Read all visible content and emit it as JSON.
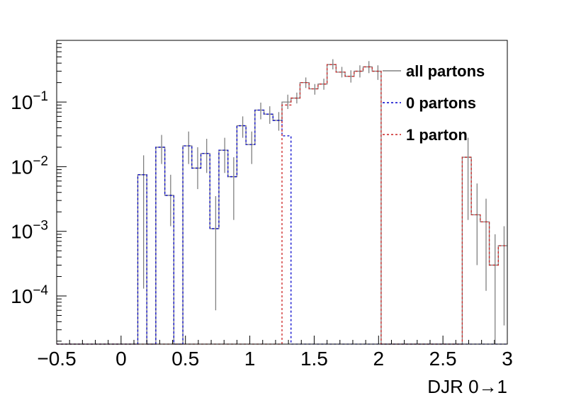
{
  "chart_data": {
    "type": "histogram-step",
    "xlabel": "DJR 0→1",
    "ylabel": "",
    "xlim": [
      -0.5,
      3.0
    ],
    "ylim": [
      1.8e-05,
      0.9
    ],
    "yscale": "log",
    "grid": false,
    "legend_placement": "top-right",
    "bin_width": 0.07,
    "x_ticks": [
      {
        "value": -0.5,
        "label": "−0.5"
      },
      {
        "value": 0,
        "label": "0"
      },
      {
        "value": 0.5,
        "label": "0.5"
      },
      {
        "value": 1,
        "label": "1"
      },
      {
        "value": 1.5,
        "label": "1.5"
      },
      {
        "value": 2,
        "label": "2"
      },
      {
        "value": 2.5,
        "label": "2.5"
      },
      {
        "value": 3,
        "label": "3"
      }
    ],
    "y_ticks": [
      {
        "value": 0.1,
        "base": "10",
        "exp": "−1"
      },
      {
        "value": 0.01,
        "base": "10",
        "exp": "−2"
      },
      {
        "value": 0.001,
        "base": "10",
        "exp": "−3"
      },
      {
        "value": 0.0001,
        "base": "10",
        "exp": "−4"
      }
    ],
    "series": [
      {
        "name": "all partons",
        "color": "#808080",
        "dash": "solid",
        "bins": [
          {
            "x0": 0.14,
            "x1": 0.21,
            "y": 0.0075,
            "err": [
              0.00013,
              0.015
            ]
          },
          {
            "x0": 0.28,
            "x1": 0.35,
            "y": 0.02,
            "err": [
              0.011,
              0.031
            ]
          },
          {
            "x0": 0.35,
            "x1": 0.42,
            "y": 0.0036,
            "err": [
              0.0012,
              0.0075
            ]
          },
          {
            "x0": 0.49,
            "x1": 0.56,
            "y": 0.021,
            "err": [
              0.011,
              0.035
            ]
          },
          {
            "x0": 0.56,
            "x1": 0.63,
            "y": 0.0095,
            "err": [
              0.0045,
              0.02
            ]
          },
          {
            "x0": 0.63,
            "x1": 0.7,
            "y": 0.016,
            "err": [
              0.008,
              0.027
            ]
          },
          {
            "x0": 0.7,
            "x1": 0.77,
            "y": 0.0011,
            "err": [
              6e-05,
              0.0035
            ]
          },
          {
            "x0": 0.77,
            "x1": 0.84,
            "y": 0.018,
            "err": [
              0.008,
              0.028
            ]
          },
          {
            "x0": 0.84,
            "x1": 0.91,
            "y": 0.007,
            "err": [
              0.0015,
              0.014
            ]
          },
          {
            "x0": 0.91,
            "x1": 0.98,
            "y": 0.043,
            "err": [
              0.028,
              0.06
            ]
          },
          {
            "x0": 0.98,
            "x1": 1.05,
            "y": 0.022,
            "err": [
              0.011,
              0.035
            ]
          },
          {
            "x0": 1.05,
            "x1": 1.12,
            "y": 0.075,
            "err": [
              0.054,
              0.098
            ]
          },
          {
            "x0": 1.12,
            "x1": 1.19,
            "y": 0.065,
            "err": [
              0.046,
              0.086
            ]
          },
          {
            "x0": 1.19,
            "x1": 1.26,
            "y": 0.052,
            "err": [
              0.036,
              0.07
            ]
          },
          {
            "x0": 1.26,
            "x1": 1.33,
            "y": 0.1,
            "err": [
              0.078,
              0.13
            ]
          },
          {
            "x0": 1.33,
            "x1": 1.4,
            "y": 0.115,
            "err": [
              0.095,
              0.14
            ]
          },
          {
            "x0": 1.4,
            "x1": 1.47,
            "y": 0.2,
            "err": [
              0.165,
              0.24
            ]
          },
          {
            "x0": 1.47,
            "x1": 1.54,
            "y": 0.16,
            "err": [
              0.13,
              0.19
            ]
          },
          {
            "x0": 1.54,
            "x1": 1.61,
            "y": 0.19,
            "err": [
              0.155,
              0.23
            ]
          },
          {
            "x0": 1.61,
            "x1": 1.68,
            "y": 0.38,
            "err": [
              0.32,
              0.46
            ]
          },
          {
            "x0": 1.68,
            "x1": 1.75,
            "y": 0.29,
            "err": [
              0.24,
              0.35
            ]
          },
          {
            "x0": 1.75,
            "x1": 1.82,
            "y": 0.25,
            "err": [
              0.2,
              0.31
            ]
          },
          {
            "x0": 1.82,
            "x1": 1.89,
            "y": 0.3,
            "err": [
              0.24,
              0.37
            ]
          },
          {
            "x0": 1.89,
            "x1": 1.96,
            "y": 0.35,
            "err": [
              0.28,
              0.43
            ]
          },
          {
            "x0": 1.96,
            "x1": 2.03,
            "y": 0.3,
            "err": [
              0.22,
              0.37
            ]
          },
          {
            "x0": 2.66,
            "x1": 2.73,
            "y": 0.014,
            "err": [
              0.0015,
              0.028
            ]
          },
          {
            "x0": 2.73,
            "x1": 2.8,
            "y": 0.0018,
            "err": [
              0.0003,
              0.0055
            ]
          },
          {
            "x0": 2.8,
            "x1": 2.87,
            "y": 0.0014,
            "err": [
              0.00012,
              0.0032
            ]
          },
          {
            "x0": 2.87,
            "x1": 2.94,
            "y": 0.0003,
            "err": [
              1e-05,
              0.0009
            ]
          },
          {
            "x0": 2.94,
            "x1": 3.01,
            "y": 0.0006,
            "err": [
              3.5e-05,
              0.0012
            ]
          }
        ]
      },
      {
        "name": "0 partons",
        "color": "#0000cc",
        "dash": "3,3",
        "bins": [
          {
            "x0": 0.14,
            "x1": 0.21,
            "y": 0.0075
          },
          {
            "x0": 0.28,
            "x1": 0.35,
            "y": 0.02
          },
          {
            "x0": 0.35,
            "x1": 0.42,
            "y": 0.0036
          },
          {
            "x0": 0.49,
            "x1": 0.56,
            "y": 0.021
          },
          {
            "x0": 0.56,
            "x1": 0.63,
            "y": 0.0095
          },
          {
            "x0": 0.63,
            "x1": 0.7,
            "y": 0.016
          },
          {
            "x0": 0.7,
            "x1": 0.77,
            "y": 0.0011
          },
          {
            "x0": 0.77,
            "x1": 0.84,
            "y": 0.018
          },
          {
            "x0": 0.84,
            "x1": 0.91,
            "y": 0.007
          },
          {
            "x0": 0.91,
            "x1": 0.98,
            "y": 0.043
          },
          {
            "x0": 0.98,
            "x1": 1.05,
            "y": 0.022
          },
          {
            "x0": 1.05,
            "x1": 1.12,
            "y": 0.075
          },
          {
            "x0": 1.12,
            "x1": 1.19,
            "y": 0.065
          },
          {
            "x0": 1.19,
            "x1": 1.26,
            "y": 0.052
          },
          {
            "x0": 1.26,
            "x1": 1.33,
            "y": 0.03
          }
        ]
      },
      {
        "name": "1 parton",
        "color": "#cc2222",
        "dash": "3,3",
        "bins": [
          {
            "x0": 1.26,
            "x1": 1.33,
            "y": 0.09
          },
          {
            "x0": 1.33,
            "x1": 1.4,
            "y": 0.115
          },
          {
            "x0": 1.4,
            "x1": 1.47,
            "y": 0.2
          },
          {
            "x0": 1.47,
            "x1": 1.54,
            "y": 0.16
          },
          {
            "x0": 1.54,
            "x1": 1.61,
            "y": 0.19
          },
          {
            "x0": 1.61,
            "x1": 1.68,
            "y": 0.38
          },
          {
            "x0": 1.68,
            "x1": 1.75,
            "y": 0.29
          },
          {
            "x0": 1.75,
            "x1": 1.82,
            "y": 0.25
          },
          {
            "x0": 1.82,
            "x1": 1.89,
            "y": 0.3
          },
          {
            "x0": 1.89,
            "x1": 1.96,
            "y": 0.35
          },
          {
            "x0": 1.96,
            "x1": 2.03,
            "y": 0.3
          },
          {
            "x0": 2.66,
            "x1": 2.73,
            "y": 0.014
          },
          {
            "x0": 2.73,
            "x1": 2.8,
            "y": 0.0018
          },
          {
            "x0": 2.8,
            "x1": 2.87,
            "y": 0.0014
          },
          {
            "x0": 2.87,
            "x1": 2.94,
            "y": 0.0003
          },
          {
            "x0": 2.94,
            "x1": 3.01,
            "y": 0.0006
          }
        ]
      }
    ]
  }
}
